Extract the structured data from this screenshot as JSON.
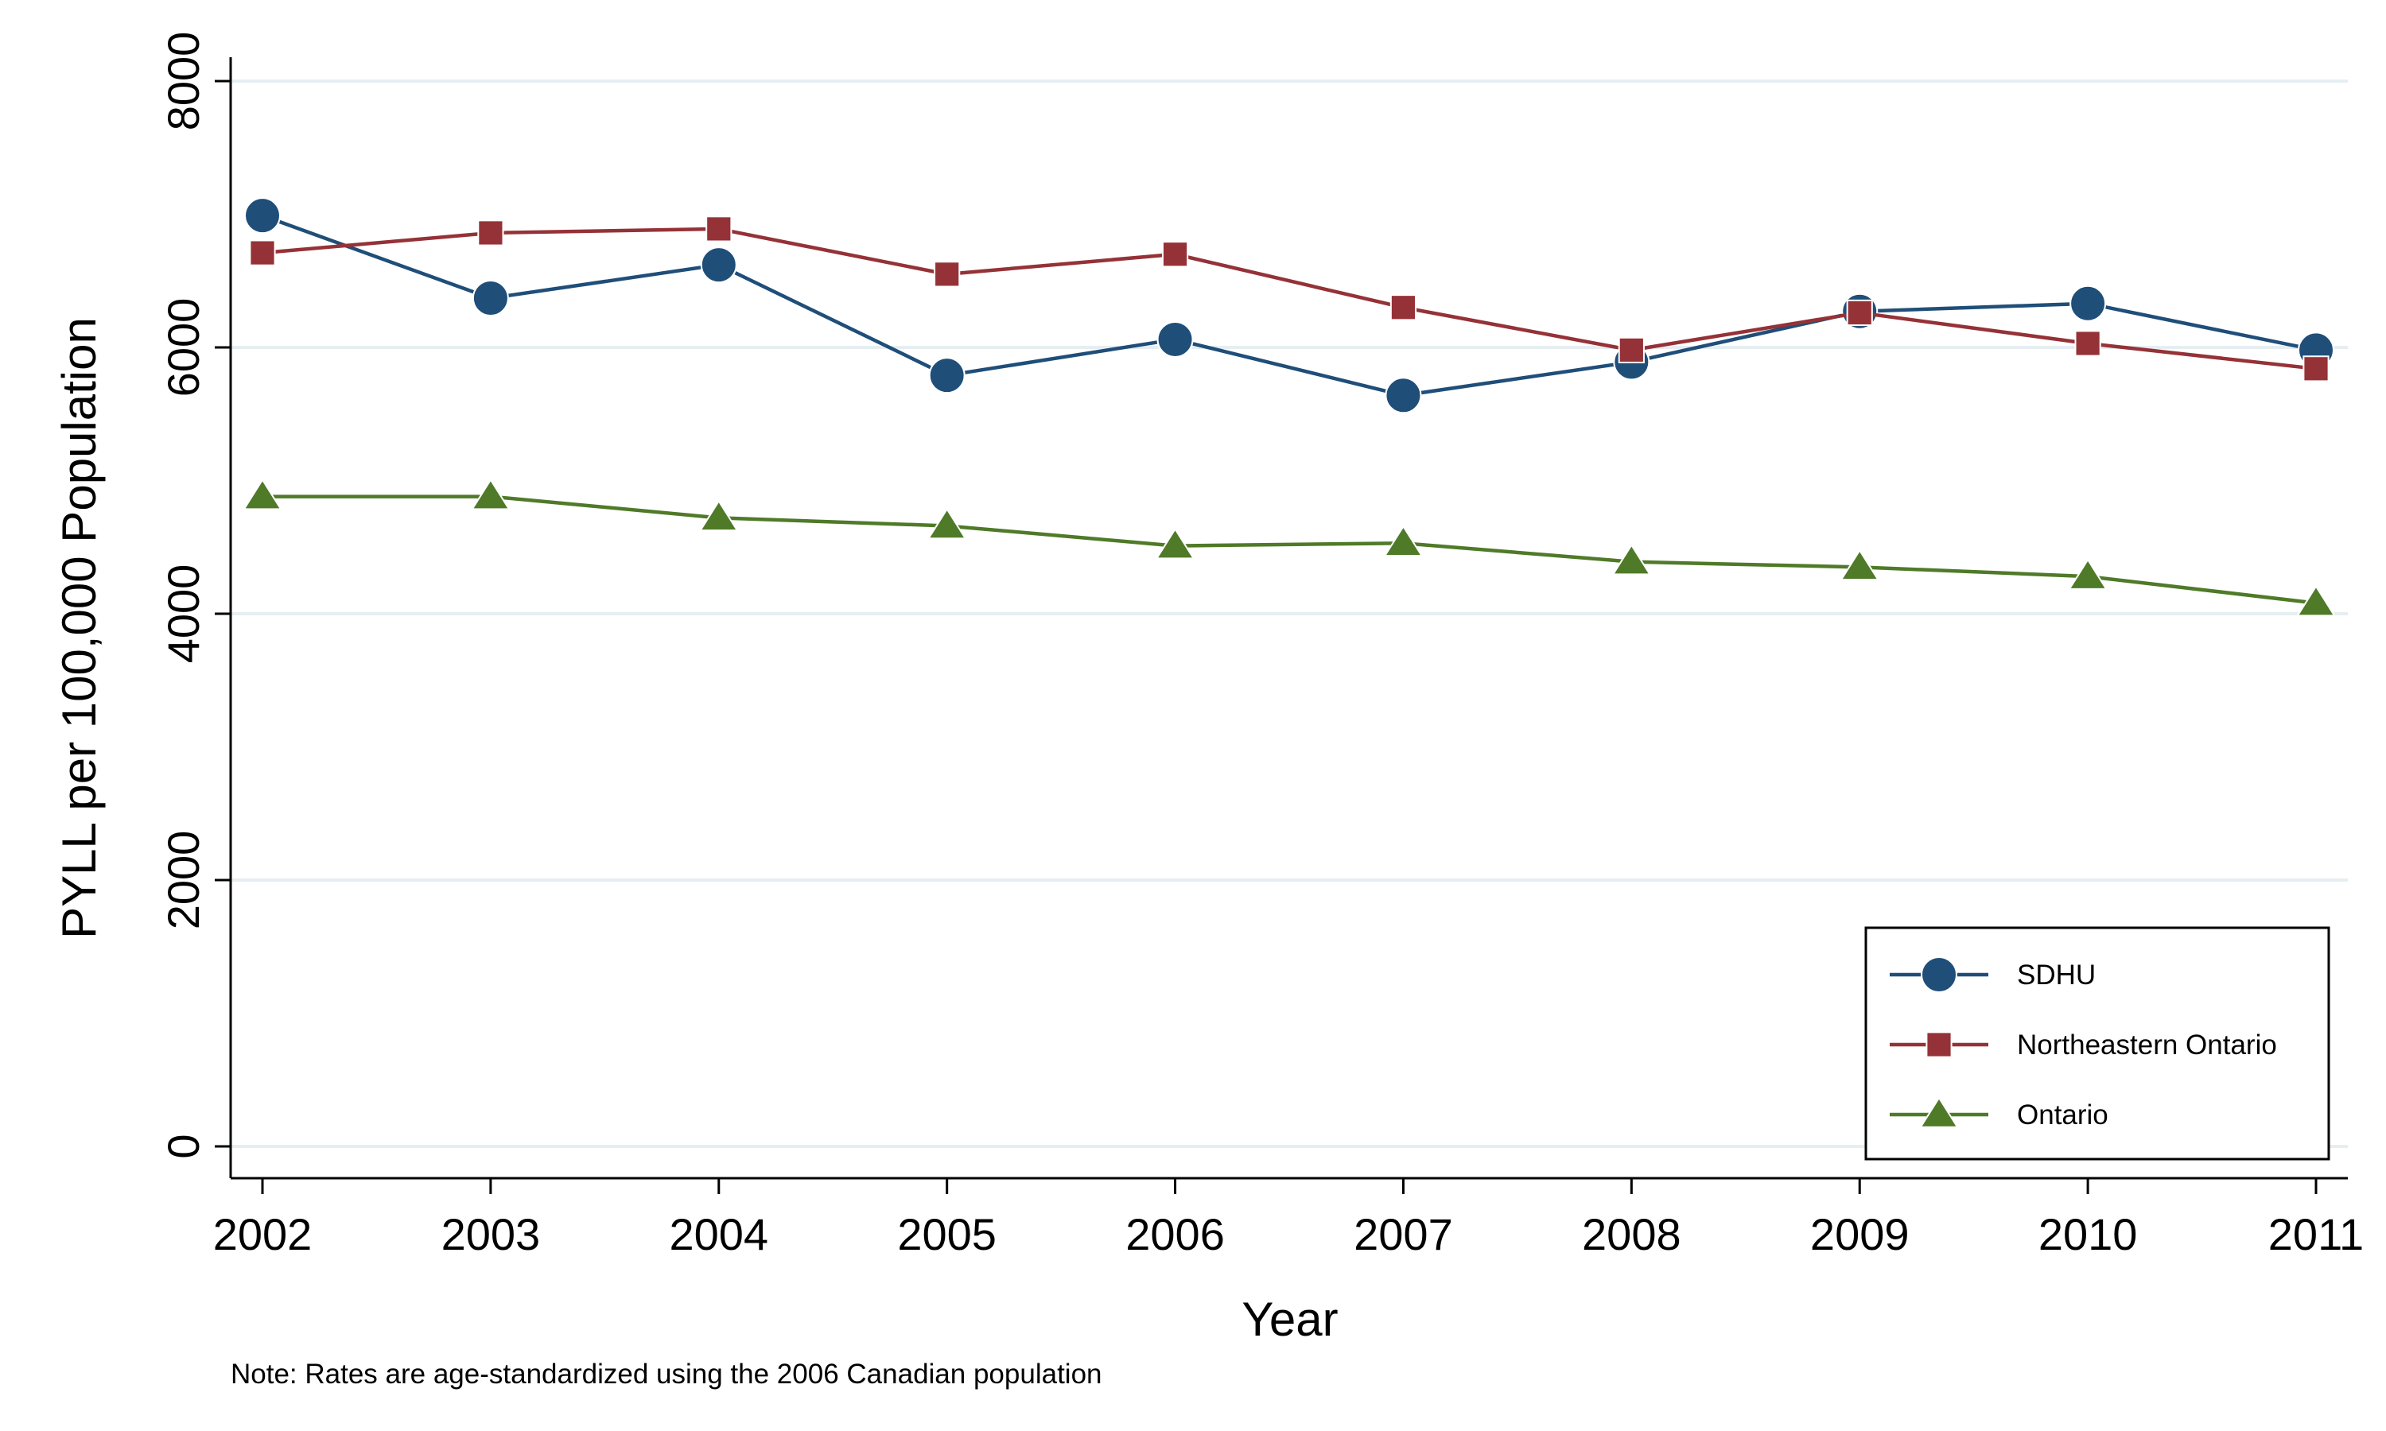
{
  "chart_data": {
    "type": "line",
    "title": "",
    "xlabel": "Year",
    "ylabel": "PYLL per 100,000 Population",
    "note": "Note: Rates are age-standardized using the 2006 Canadian population",
    "x": [
      2002,
      2003,
      2004,
      2005,
      2006,
      2007,
      2008,
      2009,
      2010,
      2011
    ],
    "x_tick_labels": [
      "2002",
      "2003",
      "2004",
      "2005",
      "2006",
      "2007",
      "2008",
      "2009",
      "2010",
      "2011"
    ],
    "ylim": [
      0,
      8000
    ],
    "y_ticks": [
      0,
      2000,
      4000,
      6000,
      8000
    ],
    "y_tick_labels": [
      "0",
      "2000",
      "4000",
      "6000",
      "8000"
    ],
    "grid": true,
    "legend_position": "bottom-right",
    "series": [
      {
        "name": "SDHU",
        "color": "#1f4e79",
        "marker": "circle",
        "values": [
          6990,
          6370,
          6620,
          5790,
          6060,
          5640,
          5890,
          6270,
          6330,
          5980
        ]
      },
      {
        "name": "Northeastern Ontario",
        "color": "#953237",
        "marker": "square",
        "values": [
          6710,
          6860,
          6890,
          6550,
          6700,
          6300,
          5980,
          6260,
          6030,
          5840
        ]
      },
      {
        "name": "Ontario",
        "color": "#4f7a28",
        "marker": "triangle",
        "values": [
          4880,
          4880,
          4720,
          4660,
          4510,
          4530,
          4390,
          4350,
          4280,
          4080
        ]
      }
    ]
  }
}
